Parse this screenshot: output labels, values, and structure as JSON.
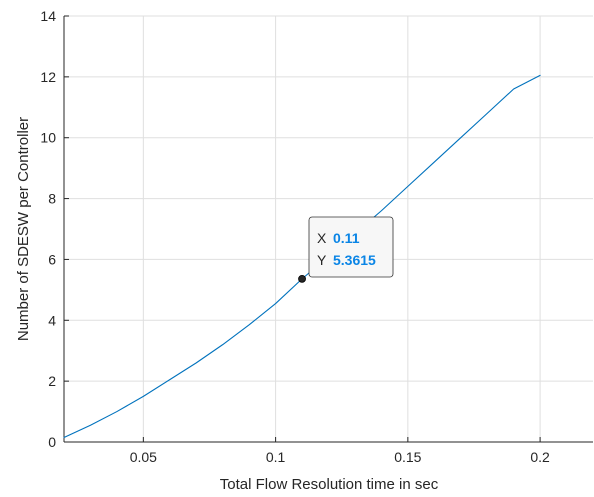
{
  "chart_data": {
    "type": "line",
    "title": "",
    "xlabel": "Total Flow Resolution time in sec",
    "ylabel": "Number of SDESW per Controller",
    "xlim": [
      0.02,
      0.22
    ],
    "ylim": [
      0,
      14
    ],
    "xticks": [
      0.05,
      0.1,
      0.15,
      0.2
    ],
    "xtick_labels": [
      "0.05",
      "0.1",
      "0.15",
      "0.2"
    ],
    "yticks": [
      0,
      2,
      4,
      6,
      8,
      10,
      12,
      14
    ],
    "ytick_labels": [
      "0",
      "2",
      "4",
      "6",
      "8",
      "10",
      "12",
      "14"
    ],
    "grid": true,
    "series": [
      {
        "color": "#0072BD",
        "x": [
          0.02,
          0.03,
          0.04,
          0.05,
          0.06,
          0.07,
          0.08,
          0.09,
          0.1,
          0.11,
          0.12,
          0.13,
          0.14,
          0.15,
          0.16,
          0.17,
          0.18,
          0.19,
          0.2
        ],
        "y": [
          0.15,
          0.55,
          1.0,
          1.5,
          2.05,
          2.6,
          3.2,
          3.85,
          4.55,
          5.3615,
          6.1,
          6.85,
          7.6,
          8.4,
          9.2,
          10.0,
          10.8,
          11.6,
          12.05
        ]
      }
    ],
    "datatip": {
      "x": 0.11,
      "y": 5.3615,
      "x_key": "X",
      "y_key": "Y",
      "x_text": "0.11",
      "y_text": "5.3615",
      "value_color": "#0a85e6",
      "marker_color": "#262626"
    }
  },
  "colors": {
    "axis": "#262626",
    "grid": "#dfdfdf",
    "background": "#ffffff"
  }
}
